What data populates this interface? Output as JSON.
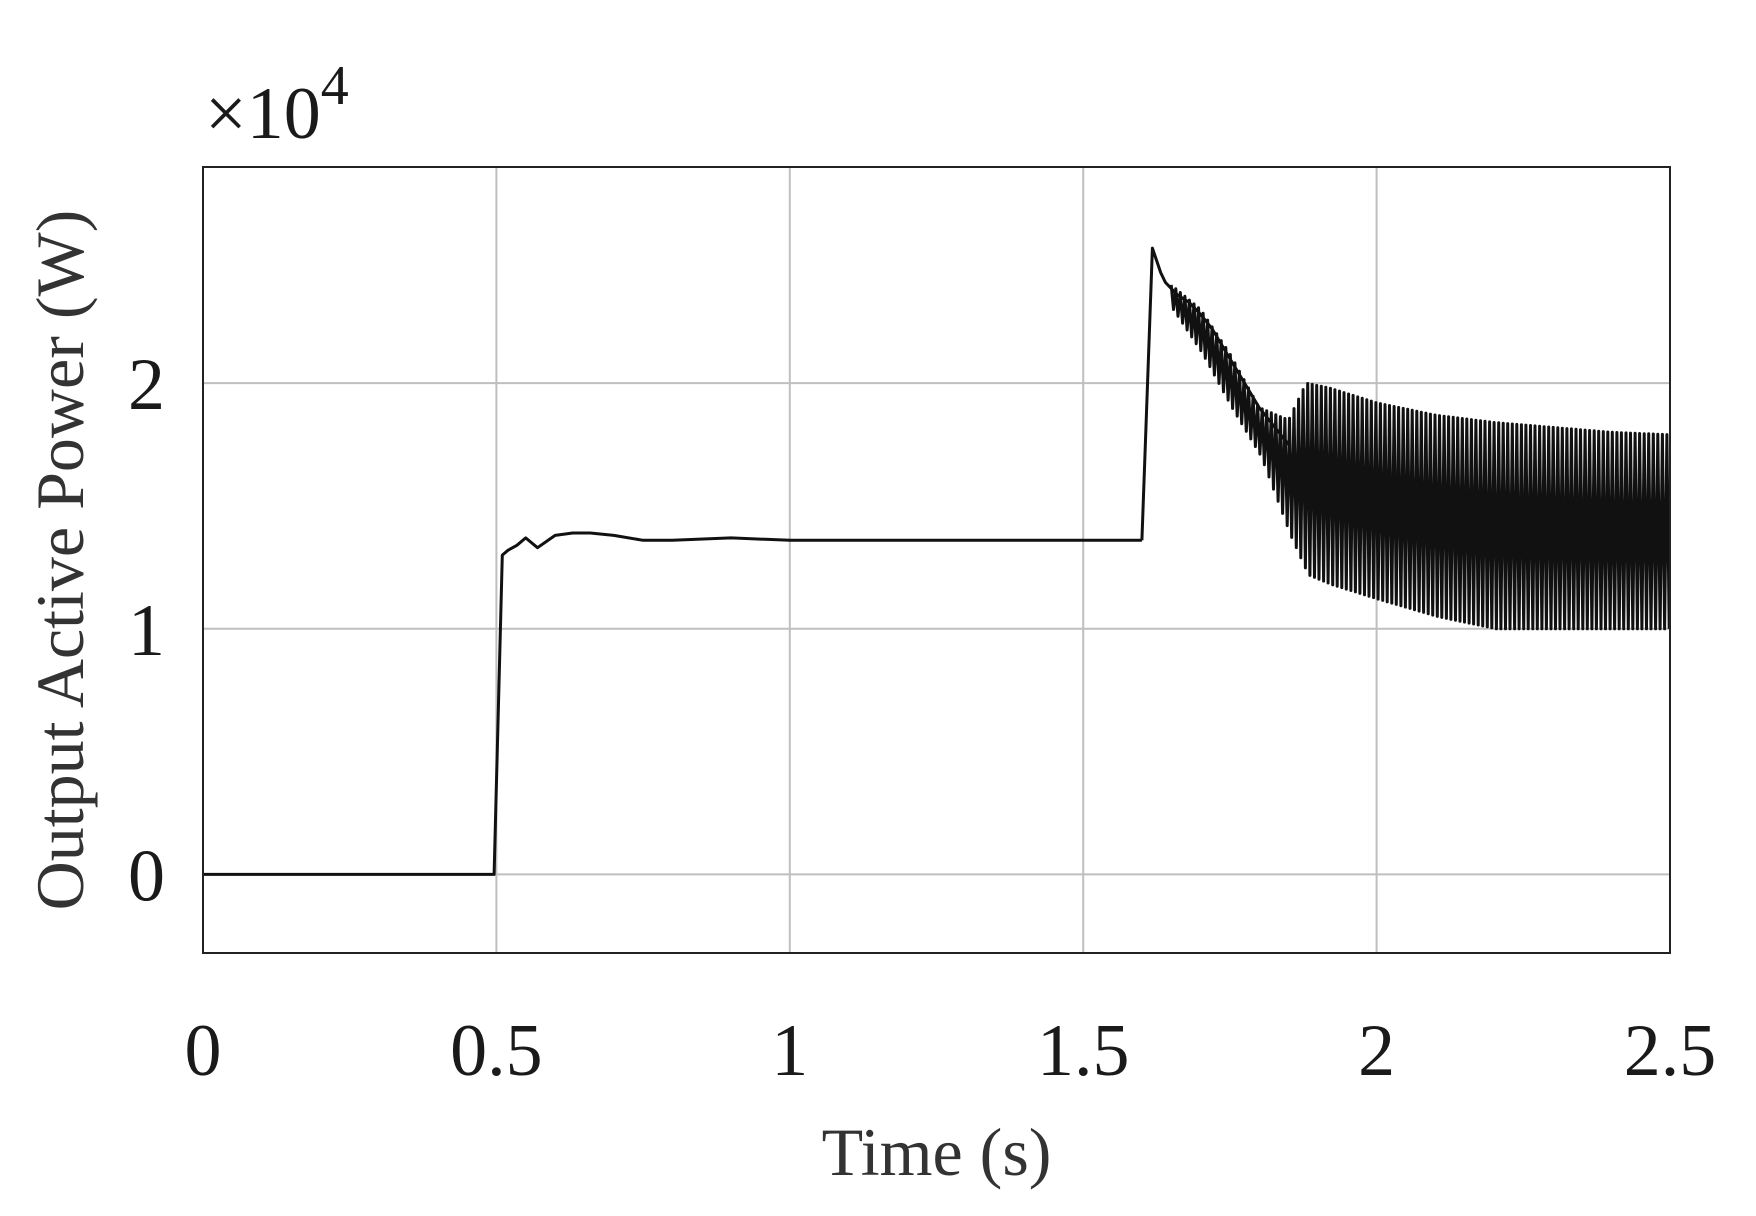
{
  "chart_data": {
    "type": "line",
    "xlabel": "Time (s)",
    "ylabel": "Output Active Power (W)",
    "y_exponent_label": {
      "base": "×10",
      "exponent": "4"
    },
    "xlim": [
      0,
      2.5
    ],
    "ylim": [
      -0.32,
      2.88
    ],
    "y_scale_factor": 10000,
    "xticks": [
      0,
      0.5,
      1,
      1.5,
      2,
      2.5
    ],
    "xtick_labels": [
      "0",
      "0.5",
      "1",
      "1.5",
      "2",
      "2.5"
    ],
    "yticks": [
      0,
      1,
      2
    ],
    "ytick_labels": [
      "0",
      "1",
      "2"
    ],
    "grid": true,
    "colors": {
      "line": "#111111",
      "grid": "#bfbfbf",
      "axes": "#222222"
    },
    "series": [
      {
        "segments": [
          {
            "x": [
              0,
              0.496,
              0.51,
              0.52,
              0.535,
              0.55,
              0.57,
              0.6,
              0.63,
              0.66,
              0.7,
              0.75,
              0.8,
              0.9,
              1.0,
              1.2,
              1.4,
              1.6
            ],
            "y": [
              0,
              0,
              1.3,
              1.32,
              1.34,
              1.37,
              1.33,
              1.38,
              1.39,
              1.39,
              1.38,
              1.36,
              1.36,
              1.37,
              1.36,
              1.36,
              1.36,
              1.36
            ]
          },
          {
            "x": [
              1.6,
              1.618,
              1.632,
              1.64,
              1.66,
              1.68,
              1.7,
              1.72,
              1.75,
              1.8,
              1.85
            ],
            "y": [
              1.36,
              2.55,
              2.45,
              2.41,
              2.36,
              2.33,
              2.28,
              2.22,
              2.1,
              1.9,
              1.75
            ]
          }
        ],
        "oscillation": {
          "x_start": 1.65,
          "x_end": 2.5,
          "period": 0.0155,
          "upper": {
            "x": [
              1.65,
              1.7,
              1.75,
              1.8,
              1.85,
              1.88,
              1.92,
              2.0,
              2.1,
              2.2,
              2.3,
              2.4,
              2.5
            ],
            "y": [
              2.4,
              2.3,
              2.12,
              1.9,
              1.85,
              2.0,
              1.98,
              1.92,
              1.87,
              1.84,
              1.82,
              1.8,
              1.79
            ]
          },
          "lower": {
            "x": [
              1.65,
              1.7,
              1.75,
              1.8,
              1.85,
              1.88,
              1.92,
              2.0,
              2.1,
              2.2,
              2.3,
              2.4,
              2.5
            ],
            "y": [
              2.3,
              2.12,
              1.9,
              1.7,
              1.38,
              1.22,
              1.18,
              1.12,
              1.05,
              1.0,
              1.0,
              1.0,
              1.0
            ]
          }
        }
      }
    ]
  }
}
